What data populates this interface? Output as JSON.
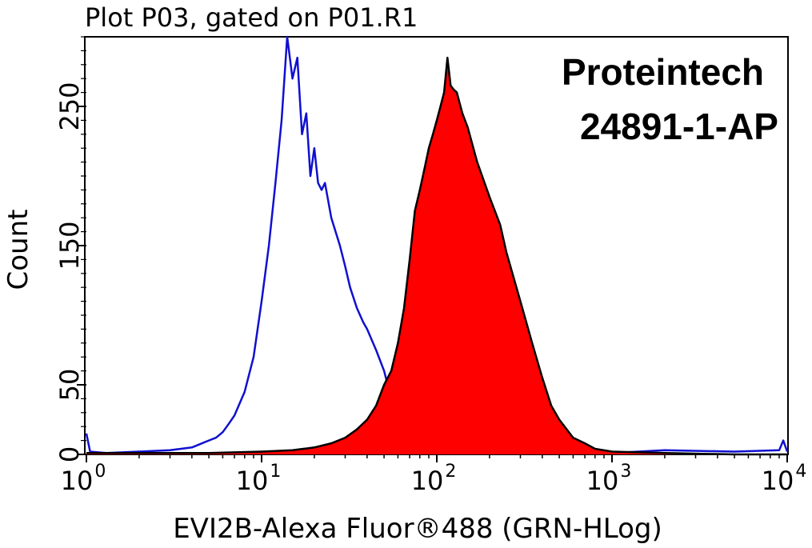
{
  "chart_data": {
    "type": "area",
    "title": "Plot P03, gated on P01.R1",
    "watermark": [
      "Proteintech",
      "24891-1-AP"
    ],
    "xlabel": "EVI2B-Alexa Fluor®488 (GRN-HLog)",
    "ylabel": "Count",
    "x_scale": "log",
    "xlim": [
      1,
      10000
    ],
    "ylim": [
      0,
      300
    ],
    "x_ticks": [
      {
        "base": "10",
        "exp": "0",
        "value": 1
      },
      {
        "base": "10",
        "exp": "1",
        "value": 10
      },
      {
        "base": "10",
        "exp": "2",
        "value": 100
      },
      {
        "base": "10",
        "exp": "3",
        "value": 1000
      },
      {
        "base": "10",
        "exp": "4",
        "value": 10000
      }
    ],
    "y_ticks": [
      {
        "label": "0",
        "value": 0
      },
      {
        "label": "50",
        "value": 50
      },
      {
        "label": "150",
        "value": 150
      },
      {
        "label": "250",
        "value": 250
      }
    ],
    "y_minor_step": 10,
    "grid": false,
    "series": [
      {
        "color": "#1010d0",
        "fill": "none",
        "x": [
          1,
          1.05,
          1.3,
          2,
          3,
          4,
          5,
          5.5,
          6,
          6.5,
          7,
          8,
          9,
          10,
          11,
          12,
          13,
          14,
          15,
          16,
          17,
          18,
          19,
          20,
          21,
          22,
          23,
          25,
          28,
          30,
          32,
          35,
          38,
          40,
          45,
          50,
          55,
          60,
          65,
          70,
          80,
          90,
          100,
          120,
          150,
          200,
          300,
          500,
          1000,
          2000,
          5000,
          9000,
          9500,
          10000
        ],
        "y": [
          15,
          2,
          1,
          2,
          3,
          5,
          10,
          12,
          16,
          22,
          28,
          45,
          70,
          110,
          150,
          195,
          240,
          300,
          270,
          285,
          230,
          245,
          200,
          220,
          195,
          190,
          195,
          170,
          150,
          135,
          120,
          105,
          95,
          90,
          75,
          60,
          40,
          30,
          25,
          20,
          12,
          8,
          5,
          2,
          1,
          1,
          1,
          1,
          1,
          3,
          2,
          3,
          10,
          2
        ]
      },
      {
        "color": "#000000",
        "fill": "#ff0000",
        "x": [
          1,
          5,
          10,
          15,
          20,
          25,
          30,
          35,
          40,
          45,
          50,
          55,
          60,
          65,
          70,
          75,
          80,
          85,
          90,
          95,
          100,
          105,
          110,
          115,
          120,
          125,
          130,
          140,
          150,
          170,
          200,
          230,
          250,
          300,
          350,
          400,
          450,
          500,
          600,
          700,
          800,
          1000,
          2000,
          5000,
          10000
        ],
        "y": [
          1,
          1,
          2,
          3,
          5,
          8,
          12,
          18,
          25,
          35,
          50,
          60,
          80,
          105,
          140,
          175,
          190,
          205,
          220,
          230,
          240,
          250,
          260,
          285,
          265,
          262,
          260,
          245,
          235,
          210,
          185,
          165,
          145,
          110,
          80,
          55,
          35,
          25,
          12,
          8,
          4,
          2,
          1,
          0,
          0
        ]
      }
    ]
  }
}
